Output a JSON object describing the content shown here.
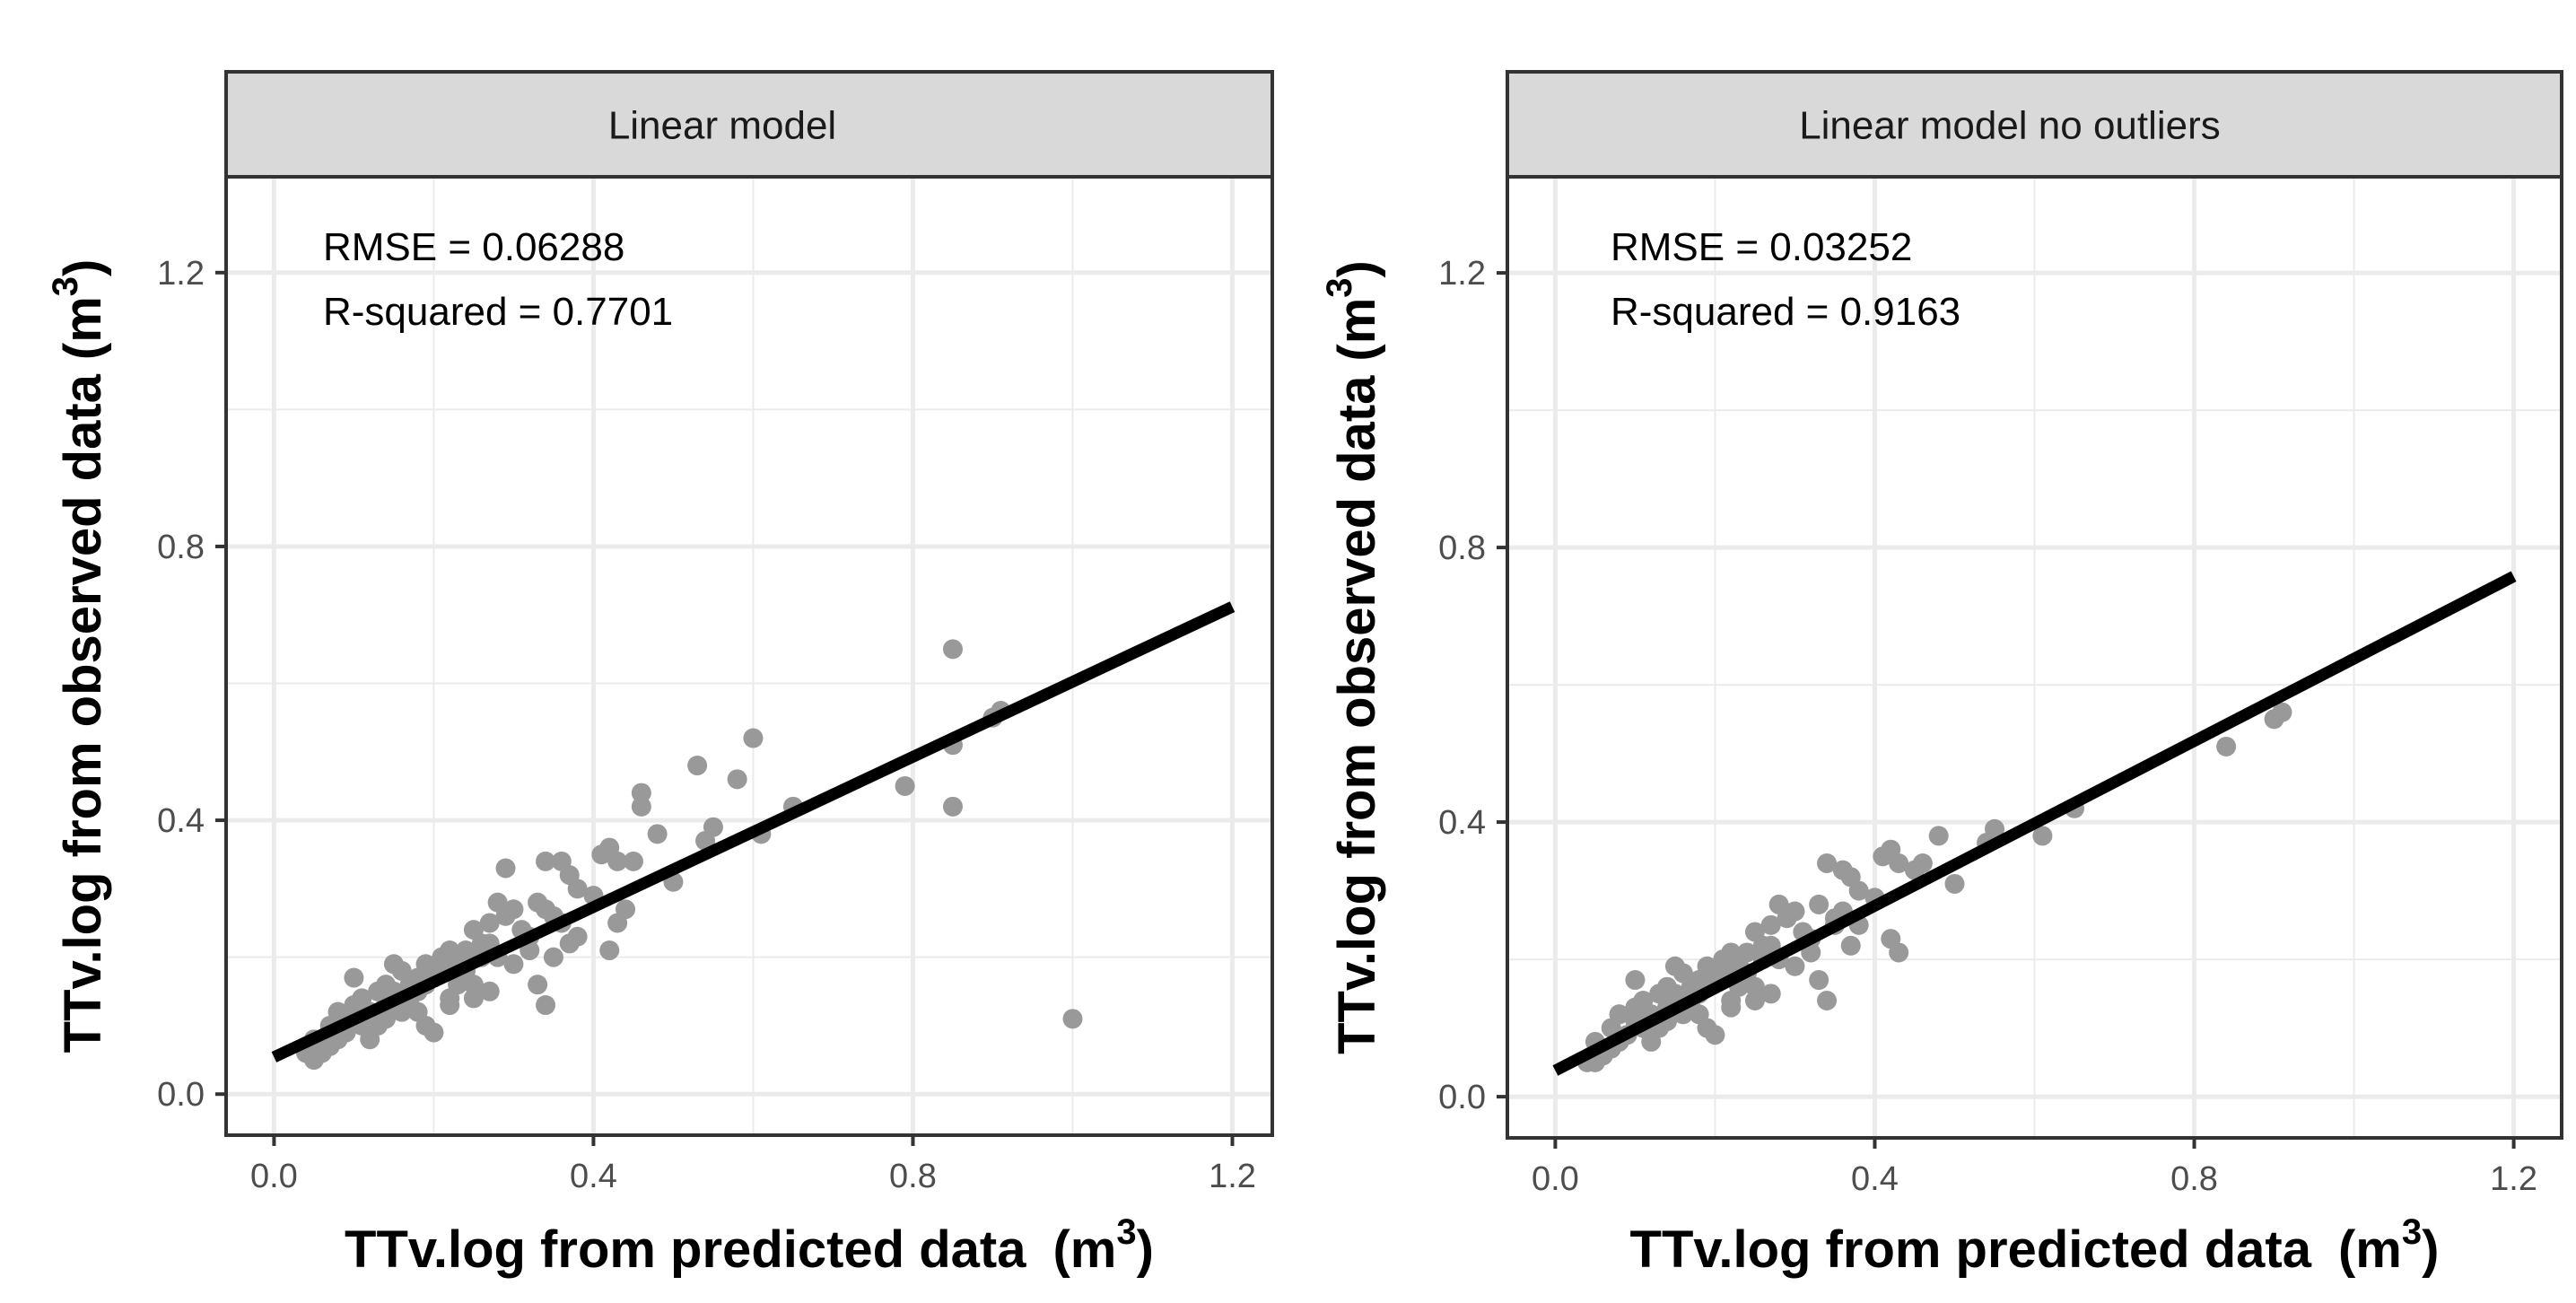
{
  "chart_data": [
    {
      "type": "scatter",
      "title": "Linear model",
      "xlabel": "TTv.log from predicted data",
      "xlabel_unit": "(m",
      "xlabel_sup": "3",
      "xlabel_close": ")",
      "ylabel": "TTv.log from observed data",
      "ylabel_unit": "(m",
      "ylabel_sup": "3",
      "ylabel_close": ")",
      "xlim": [
        -0.06,
        1.25
      ],
      "ylim": [
        -0.06,
        1.34
      ],
      "xticks": [
        0.0,
        0.4,
        0.8,
        1.2
      ],
      "yticks": [
        0.0,
        0.4,
        0.8,
        1.2
      ],
      "xtick_labels": [
        "0.0",
        "0.4",
        "0.8",
        "1.2"
      ],
      "ytick_labels": [
        "0.0",
        "0.4",
        "0.8",
        "1.2"
      ],
      "annotations": [
        "RMSE = 0.06288",
        "R-squared = 0.7701"
      ],
      "fit_line": {
        "x": [
          0.0,
          1.2
        ],
        "y": [
          0.054,
          0.712
        ]
      },
      "points": {
        "x": [
          0.85,
          0.85,
          0.9,
          0.91,
          0.79,
          0.85,
          0.6,
          0.53,
          0.58,
          0.46,
          0.46,
          0.55,
          0.54,
          0.48,
          0.5,
          0.45,
          0.42,
          0.43,
          0.41,
          0.44,
          0.38,
          0.4,
          0.36,
          0.37,
          0.34,
          0.33,
          0.35,
          0.37,
          0.32,
          0.3,
          0.28,
          0.29,
          0.27,
          0.26,
          0.28,
          0.3,
          0.31,
          0.32,
          0.33,
          0.34,
          0.34,
          0.36,
          0.38,
          0.42,
          0.43,
          0.35,
          0.29,
          0.25,
          0.24,
          0.23,
          0.22,
          0.21,
          0.2,
          0.19,
          0.18,
          0.17,
          0.16,
          0.15,
          0.14,
          0.13,
          0.12,
          0.11,
          0.1,
          0.09,
          0.08,
          0.07,
          0.06,
          0.05,
          0.04,
          0.05,
          0.06,
          0.07,
          0.08,
          0.09,
          0.1,
          0.11,
          0.12,
          0.13,
          0.14,
          0.15,
          0.16,
          0.17,
          0.18,
          0.19,
          0.2,
          0.21,
          0.22,
          0.23,
          0.24,
          0.25,
          0.26,
          0.27,
          0.1,
          0.13,
          0.15,
          0.18,
          0.2,
          0.22,
          0.25,
          0.27,
          0.12,
          0.08,
          0.14,
          0.16,
          0.19,
          0.61,
          0.65,
          1.0
        ],
        "y": [
          0.65,
          0.51,
          0.55,
          0.56,
          0.45,
          0.42,
          0.52,
          0.48,
          0.46,
          0.42,
          0.44,
          0.39,
          0.37,
          0.38,
          0.31,
          0.34,
          0.36,
          0.34,
          0.35,
          0.27,
          0.3,
          0.29,
          0.34,
          0.32,
          0.34,
          0.28,
          0.26,
          0.22,
          0.23,
          0.27,
          0.28,
          0.26,
          0.25,
          0.22,
          0.2,
          0.19,
          0.24,
          0.21,
          0.16,
          0.13,
          0.27,
          0.25,
          0.23,
          0.21,
          0.25,
          0.2,
          0.33,
          0.24,
          0.21,
          0.19,
          0.21,
          0.18,
          0.17,
          0.16,
          0.17,
          0.14,
          0.12,
          0.15,
          0.13,
          0.11,
          0.12,
          0.1,
          0.11,
          0.09,
          0.08,
          0.07,
          0.06,
          0.05,
          0.06,
          0.08,
          0.07,
          0.1,
          0.12,
          0.09,
          0.13,
          0.14,
          0.12,
          0.15,
          0.16,
          0.14,
          0.18,
          0.16,
          0.15,
          0.19,
          0.17,
          0.2,
          0.13,
          0.16,
          0.18,
          0.14,
          0.2,
          0.22,
          0.17,
          0.1,
          0.19,
          0.12,
          0.09,
          0.14,
          0.16,
          0.15,
          0.08,
          0.12,
          0.11,
          0.13,
          0.1,
          0.38,
          0.42,
          0.11
        ]
      }
    },
    {
      "type": "scatter",
      "title": "Linear model no outliers",
      "xlabel": "TTv.log from predicted data",
      "xlabel_unit": "(m",
      "xlabel_sup": "3",
      "xlabel_close": ")",
      "ylabel": "TTv.log from observed data",
      "ylabel_unit": "(m",
      "ylabel_sup": "3",
      "ylabel_close": ")",
      "xlim": [
        -0.06,
        1.26
      ],
      "ylim": [
        -0.06,
        1.34
      ],
      "xticks": [
        0.0,
        0.4,
        0.8,
        1.2
      ],
      "yticks": [
        0.0,
        0.4,
        0.8,
        1.2
      ],
      "xtick_labels": [
        "0.0",
        "0.4",
        "0.8",
        "1.2"
      ],
      "ytick_labels": [
        "0.0",
        "0.4",
        "0.8",
        "1.2"
      ],
      "annotations": [
        "RMSE = 0.03252",
        "R-squared = 0.9163"
      ],
      "fit_line": {
        "x": [
          0.0,
          1.2
        ],
        "y": [
          0.038,
          0.758
        ]
      },
      "points": {
        "x": [
          0.9,
          0.91,
          0.84,
          0.65,
          0.61,
          0.55,
          0.54,
          0.5,
          0.48,
          0.46,
          0.45,
          0.42,
          0.43,
          0.41,
          0.38,
          0.4,
          0.36,
          0.37,
          0.34,
          0.33,
          0.35,
          0.37,
          0.32,
          0.3,
          0.28,
          0.29,
          0.27,
          0.26,
          0.28,
          0.3,
          0.31,
          0.32,
          0.33,
          0.34,
          0.36,
          0.38,
          0.42,
          0.43,
          0.35,
          0.25,
          0.24,
          0.23,
          0.22,
          0.21,
          0.2,
          0.19,
          0.18,
          0.17,
          0.16,
          0.15,
          0.14,
          0.13,
          0.12,
          0.11,
          0.1,
          0.09,
          0.08,
          0.07,
          0.06,
          0.05,
          0.04,
          0.05,
          0.06,
          0.07,
          0.08,
          0.09,
          0.1,
          0.11,
          0.12,
          0.13,
          0.14,
          0.15,
          0.16,
          0.17,
          0.18,
          0.19,
          0.2,
          0.21,
          0.22,
          0.23,
          0.24,
          0.25,
          0.26,
          0.27,
          0.1,
          0.13,
          0.15,
          0.18,
          0.2,
          0.22,
          0.25,
          0.27,
          0.12,
          0.08,
          0.14,
          0.16,
          0.19
        ],
        "y": [
          0.55,
          0.56,
          0.51,
          0.42,
          0.38,
          0.39,
          0.37,
          0.31,
          0.38,
          0.34,
          0.33,
          0.36,
          0.34,
          0.35,
          0.3,
          0.29,
          0.33,
          0.32,
          0.34,
          0.28,
          0.26,
          0.22,
          0.23,
          0.27,
          0.28,
          0.26,
          0.25,
          0.22,
          0.2,
          0.19,
          0.24,
          0.21,
          0.17,
          0.14,
          0.27,
          0.25,
          0.23,
          0.21,
          0.25,
          0.24,
          0.21,
          0.19,
          0.21,
          0.18,
          0.17,
          0.16,
          0.17,
          0.14,
          0.12,
          0.15,
          0.13,
          0.11,
          0.12,
          0.1,
          0.11,
          0.09,
          0.08,
          0.07,
          0.06,
          0.05,
          0.05,
          0.08,
          0.07,
          0.1,
          0.12,
          0.09,
          0.13,
          0.14,
          0.12,
          0.15,
          0.16,
          0.14,
          0.18,
          0.16,
          0.15,
          0.19,
          0.17,
          0.2,
          0.13,
          0.16,
          0.18,
          0.14,
          0.2,
          0.22,
          0.17,
          0.1,
          0.19,
          0.12,
          0.09,
          0.14,
          0.16,
          0.15,
          0.08,
          0.12,
          0.11,
          0.13,
          0.1
        ]
      }
    }
  ],
  "colors": {
    "points": "#999999",
    "fit_line": "#000000",
    "strip_bg": "#d9d9d9",
    "grid": "#ebebeb",
    "frame": "#333333"
  }
}
